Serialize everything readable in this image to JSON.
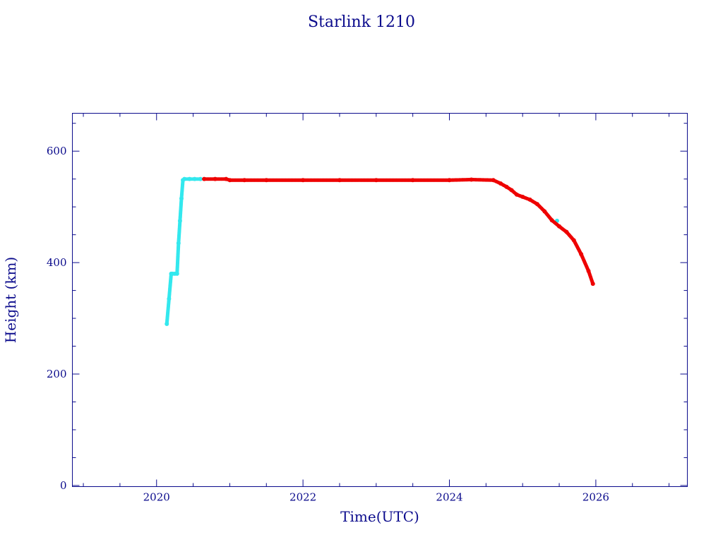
{
  "chart_data": {
    "type": "scatter",
    "title": "Starlink 1210",
    "xlabel": "Time(UTC)",
    "ylabel": "Height (km)",
    "xlim": [
      2018.85,
      2027.25
    ],
    "ylim": [
      -2,
      668
    ],
    "x_major_ticks": [
      2020,
      2022,
      2024,
      2026
    ],
    "x_minor_step": 0.5,
    "y_major_ticks": [
      0,
      200,
      400,
      600
    ],
    "y_minor_step": 50,
    "grid": false,
    "legend": "none",
    "colors": {
      "axis": "#0b0b8c",
      "raising": "#33e8ee",
      "operational": "#ee0000"
    },
    "series": [
      {
        "color": "#33e8ee",
        "x": [
          2020.14,
          2020.17,
          2020.2,
          2020.22,
          2020.25,
          2020.28,
          2020.3,
          2020.32,
          2020.34,
          2020.36,
          2020.38,
          2020.45,
          2020.52,
          2020.6,
          2025.47
        ],
        "y": [
          290,
          335,
          380,
          380,
          380,
          380,
          435,
          475,
          515,
          548,
          550,
          550,
          550,
          550,
          475
        ]
      },
      {
        "color": "#ee0000",
        "x": [
          2020.65,
          2020.8,
          2020.95,
          2021.0,
          2021.2,
          2021.5,
          2022.0,
          2022.5,
          2023.0,
          2023.5,
          2024.0,
          2024.3,
          2024.6,
          2024.7,
          2024.78,
          2024.85,
          2024.92,
          2025.0,
          2025.1,
          2025.2,
          2025.3,
          2025.4,
          2025.5,
          2025.6,
          2025.7,
          2025.8,
          2025.9,
          2025.96
        ],
        "y": [
          550,
          550,
          550,
          548,
          548,
          548,
          548,
          548,
          548,
          548,
          548,
          549,
          548,
          542,
          536,
          530,
          522,
          518,
          513,
          505,
          492,
          476,
          465,
          455,
          440,
          415,
          385,
          362
        ]
      }
    ]
  }
}
